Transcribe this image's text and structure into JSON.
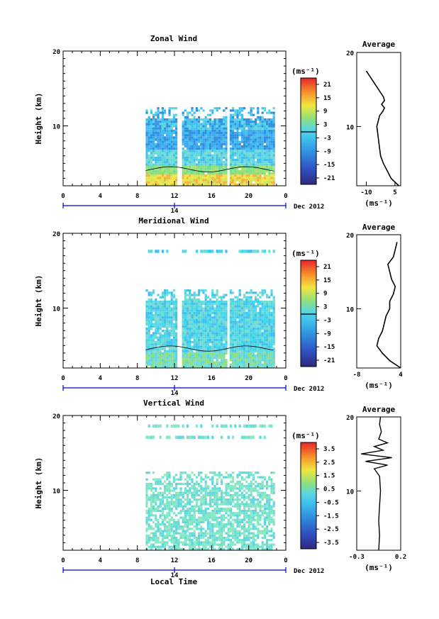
{
  "chart_data": [
    {
      "type": "heatmap",
      "title": "Zonal Wind",
      "ylabel": "Height (km)",
      "xlabel": "",
      "xlim": [
        0,
        24
      ],
      "ylim": [
        2,
        20
      ],
      "x_ticks": [
        "0",
        "4",
        "8",
        "12",
        "16",
        "20",
        "0"
      ],
      "y_ticks": [
        "10",
        "20"
      ],
      "date_marker": "14",
      "date_label": "Dec 2012",
      "colorbar_unit": "(ms⁻¹)",
      "colorbar_ticks": [
        "21",
        "15",
        "9",
        "3",
        "-3",
        "-9",
        "-15",
        "-21"
      ],
      "data_extent": {
        "x_start": 8.9,
        "x_end": 22.8,
        "gaps": [
          12.4,
          17.7
        ],
        "z_top": 12.5,
        "sparse_layers": []
      },
      "average_profile": {
        "title": "Average",
        "xlabel": "(ms⁻¹)",
        "x_ticks": [
          "-10",
          "5"
        ],
        "xlim": [
          -15,
          8
        ],
        "y_ticks": [
          "10",
          "20"
        ],
        "z": [
          2.0,
          3.0,
          4.0,
          5.0,
          6.0,
          7.0,
          8.0,
          9.0,
          10.0,
          10.5,
          11.0,
          11.5,
          12.0,
          12.5,
          13.0,
          13.5,
          14.0,
          17.5
        ],
        "u": [
          7.0,
          3.0,
          1.0,
          -1.0,
          -2.5,
          -3.0,
          -3.5,
          -4.0,
          -4.5,
          -4.0,
          -3.5,
          -3.0,
          -1.5,
          -0.5,
          -2.0,
          -0.5,
          -1.0,
          -10.0
        ]
      }
    },
    {
      "type": "heatmap",
      "title": "Meridional Wind",
      "ylabel": "Height (km)",
      "xlabel": "",
      "xlim": [
        0,
        24
      ],
      "ylim": [
        2,
        20
      ],
      "x_ticks": [
        "0",
        "4",
        "8",
        "12",
        "16",
        "20",
        "0"
      ],
      "y_ticks": [
        "10",
        "20"
      ],
      "date_marker": "14",
      "date_label": "Dec 2012",
      "colorbar_unit": "(ms⁻¹)",
      "colorbar_ticks": [
        "21",
        "15",
        "9",
        "3",
        "-3",
        "-9",
        "-15",
        "-21"
      ],
      "data_extent": {
        "x_start": 8.9,
        "x_end": 22.8,
        "gaps": [
          12.4,
          17.7
        ],
        "z_top": 12.5,
        "sparse_layers": [
          17.5
        ]
      },
      "average_profile": {
        "title": "Average",
        "xlabel": "(ms⁻¹)",
        "x_ticks": [
          "-8",
          "4"
        ],
        "xlim": [
          -8,
          4
        ],
        "y_ticks": [
          "10",
          "20"
        ],
        "z": [
          2.0,
          3.0,
          4.0,
          5.0,
          6.0,
          7.0,
          8.0,
          9.0,
          10.0,
          11.0,
          12.0,
          13.0,
          14.0,
          15.0,
          16.0,
          17.0,
          18.0,
          19.0
        ],
        "u": [
          4.0,
          1.0,
          -1.0,
          -2.5,
          -2.0,
          -1.0,
          -0.5,
          0.0,
          1.0,
          1.0,
          2.0,
          2.5,
          1.5,
          1.0,
          0.5,
          2.0,
          2.5,
          3.0
        ]
      }
    },
    {
      "type": "heatmap",
      "title": "Vertical Wind",
      "ylabel": "Height (km)",
      "xlabel": "Local Time",
      "xlim": [
        0,
        24
      ],
      "ylim": [
        2,
        20
      ],
      "x_ticks": [
        "0",
        "4",
        "8",
        "12",
        "16",
        "20",
        "0"
      ],
      "y_ticks": [
        "10",
        "20"
      ],
      "date_marker": "14",
      "date_label": "Dec 2012",
      "colorbar_unit": "(ms⁻¹)",
      "colorbar_ticks": [
        "3.5",
        "2.5",
        "1.5",
        "0.5",
        "-0.5",
        "-1.5",
        "-2.5",
        "-3.5"
      ],
      "data_extent": {
        "x_start": 8.9,
        "x_end": 22.8,
        "gaps": [],
        "z_top": 12.5,
        "sparse_layers": [
          17.0,
          18.5
        ]
      },
      "average_profile": {
        "title": "Average",
        "xlabel": "(ms⁻¹)",
        "x_ticks": [
          "-0.3",
          "0.2"
        ],
        "xlim": [
          -0.3,
          0.2
        ],
        "y_ticks": [
          "10",
          "20"
        ],
        "z": [
          2.0,
          4.0,
          6.0,
          8.0,
          10.0,
          12.0,
          13.0,
          13.5,
          14.0,
          14.5,
          15.0,
          15.5,
          16.0,
          16.5,
          17.0,
          18.0,
          19.0,
          20.0
        ],
        "u": [
          -0.05,
          -0.04,
          -0.05,
          -0.04,
          -0.03,
          -0.04,
          -0.1,
          0.05,
          -0.2,
          0.1,
          -0.25,
          0.0,
          -0.1,
          0.05,
          -0.05,
          -0.02,
          -0.04,
          -0.03
        ]
      }
    }
  ]
}
